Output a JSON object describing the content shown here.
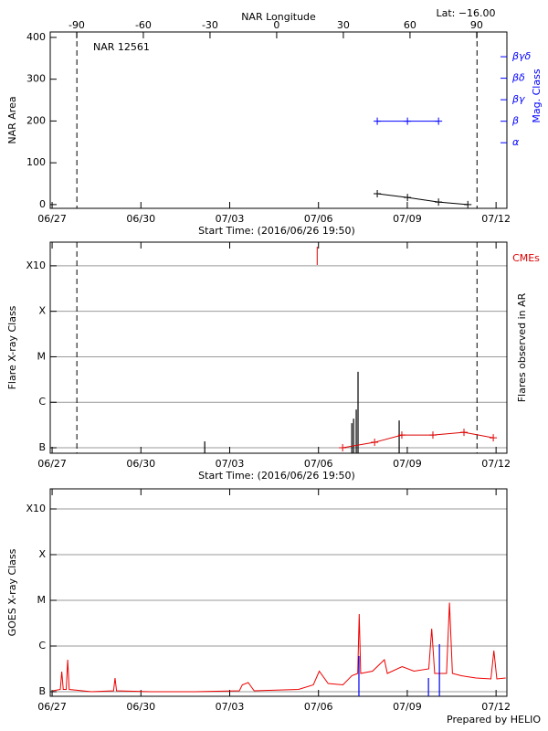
{
  "chart_data": [
    {
      "type": "line",
      "title": "NAR 12561",
      "annotation": "Lat: −16.00",
      "x2_label": "NAR Longitude",
      "x_label": "Start Time: (2016/06/26 19:50)",
      "y_label": "NAR Area",
      "y2_label": "Mag. Class",
      "y2_color": "#0000ff",
      "xlim": [
        0.11,
        15.54
      ],
      "xticks": [
        {
          "value": 0.174,
          "label": "06/27"
        },
        {
          "value": 3.174,
          "label": "06/30"
        },
        {
          "value": 6.174,
          "label": "07/03"
        },
        {
          "value": 9.174,
          "label": "07/06"
        },
        {
          "value": 12.174,
          "label": "07/09"
        },
        {
          "value": 15.174,
          "label": "07/12"
        }
      ],
      "x2lim": [
        -101.9,
        103.6
      ],
      "x2ticks": [
        -90,
        -60,
        -30,
        0,
        30,
        60,
        90
      ],
      "ylim": [
        -9,
        413
      ],
      "yticks": [
        0,
        100,
        200,
        300,
        400
      ],
      "y2lim": [
        -2.05,
        6.15
      ],
      "y2ticks": [
        {
          "value": 1,
          "label": "α"
        },
        {
          "value": 2,
          "label": "β"
        },
        {
          "value": 3,
          "label": "βγ"
        },
        {
          "value": 4,
          "label": "βδ"
        },
        {
          "value": 5,
          "label": "βγδ"
        }
      ],
      "grid": false,
      "vlines": [
        1.01,
        14.53
      ],
      "series": [
        {
          "type": "line",
          "marker": "+",
          "color": "#000000",
          "x": [
            11.16,
            12.18,
            13.23,
            14.22
          ],
          "values": [
            26,
            17,
            6,
            0
          ]
        },
        {
          "type": "line",
          "marker": "+",
          "color": "#0000ff",
          "axis": "y2",
          "x": [
            11.16,
            12.18,
            13.23
          ],
          "values": [
            2,
            2,
            2
          ]
        }
      ]
    },
    {
      "type": "bar",
      "annotation": "CMEs",
      "annotation_color": "#dd0000",
      "x_label": "Start Time: (2016/06/26 19:50)",
      "y_label": "Flare X-ray Class",
      "y2_label": "Flares observed in AR",
      "y2_color": "#000000",
      "xlim": [
        0.11,
        15.54
      ],
      "xticks": [
        {
          "value": 0.174,
          "label": "06/27"
        },
        {
          "value": 3.174,
          "label": "06/30"
        },
        {
          "value": 6.174,
          "label": "07/03"
        },
        {
          "value": 9.174,
          "label": "07/06"
        },
        {
          "value": 12.174,
          "label": "07/09"
        },
        {
          "value": 15.174,
          "label": "07/12"
        }
      ],
      "ylim": [
        -7.12,
        -2.48
      ],
      "yticks": [
        {
          "value": -7,
          "label": "B"
        },
        {
          "value": -6,
          "label": "C"
        },
        {
          "value": -5,
          "label": "M"
        },
        {
          "value": -4,
          "label": "X"
        },
        {
          "value": -3,
          "label": "X10"
        }
      ],
      "grid": true,
      "vlines": [
        1.01,
        14.53
      ],
      "series": [
        {
          "type": "bar",
          "color": "#000000",
          "x": [
            5.33,
            10.3,
            10.36,
            10.45,
            10.51,
            11.9
          ],
          "values": [
            -6.86,
            -6.46,
            -6.36,
            -6.16,
            -5.33,
            -6.4
          ]
        },
        {
          "type": "line",
          "marker": "+",
          "color": "#dd0000",
          "x": [
            9.99,
            11.07,
            11.99,
            13.04,
            14.09,
            15.08
          ],
          "values": [
            -7.0,
            -6.88,
            -6.72,
            -6.72,
            -6.66,
            -6.78
          ]
        },
        {
          "type": "event",
          "color": "#dd0000",
          "x": [
            9.13
          ]
        }
      ]
    },
    {
      "type": "line",
      "y_label": "GOES X-ray Class",
      "xlim": [
        0.11,
        15.54
      ],
      "xticks": [
        {
          "value": 0.174,
          "label": "06/27"
        },
        {
          "value": 3.174,
          "label": "06/30"
        },
        {
          "value": 6.174,
          "label": "07/03"
        },
        {
          "value": 9.174,
          "label": "07/06"
        },
        {
          "value": 12.174,
          "label": "07/09"
        },
        {
          "value": 15.174,
          "label": "07/12"
        }
      ],
      "ylim": [
        -7.1,
        -2.56
      ],
      "yticks": [
        {
          "value": -7,
          "label": "B"
        },
        {
          "value": -6,
          "label": "C"
        },
        {
          "value": -5,
          "label": "M"
        },
        {
          "value": -4,
          "label": "X"
        },
        {
          "value": -3,
          "label": "X10"
        }
      ],
      "grid": true,
      "series": [
        {
          "type": "line",
          "color": "#ee0000",
          "x": [
            0.2,
            0.45,
            0.5,
            0.55,
            0.65,
            0.7,
            0.75,
            1.5,
            2.25,
            2.3,
            2.35,
            3.5,
            5.0,
            6.5,
            6.6,
            6.8,
            7.0,
            8.5,
            9.0,
            9.2,
            9.5,
            10.0,
            10.3,
            10.5,
            10.55,
            10.6,
            11.0,
            11.4,
            11.5,
            12.0,
            12.4,
            12.9,
            13.0,
            13.1,
            13.5,
            13.6,
            13.7,
            14.0,
            14.5,
            15.0,
            15.1,
            15.2,
            15.5
          ],
          "values": [
            -6.98,
            -6.95,
            -6.56,
            -6.95,
            -6.95,
            -6.3,
            -6.95,
            -7.0,
            -6.98,
            -6.7,
            -6.98,
            -7.0,
            -7.0,
            -6.98,
            -6.85,
            -6.8,
            -6.98,
            -6.95,
            -6.85,
            -6.55,
            -6.82,
            -6.85,
            -6.65,
            -6.6,
            -5.3,
            -6.6,
            -6.55,
            -6.3,
            -6.6,
            -6.45,
            -6.55,
            -6.5,
            -5.62,
            -6.6,
            -6.6,
            -5.05,
            -6.6,
            -6.65,
            -6.7,
            -6.72,
            -6.1,
            -6.72,
            -6.7
          ]
        },
        {
          "type": "bar",
          "color": "#0000ee",
          "x": [
            10.54,
            12.89,
            13.26
          ],
          "values": [
            -6.22,
            -6.7,
            -5.96
          ]
        }
      ]
    }
  ],
  "footer": "Prepared by HELIO"
}
